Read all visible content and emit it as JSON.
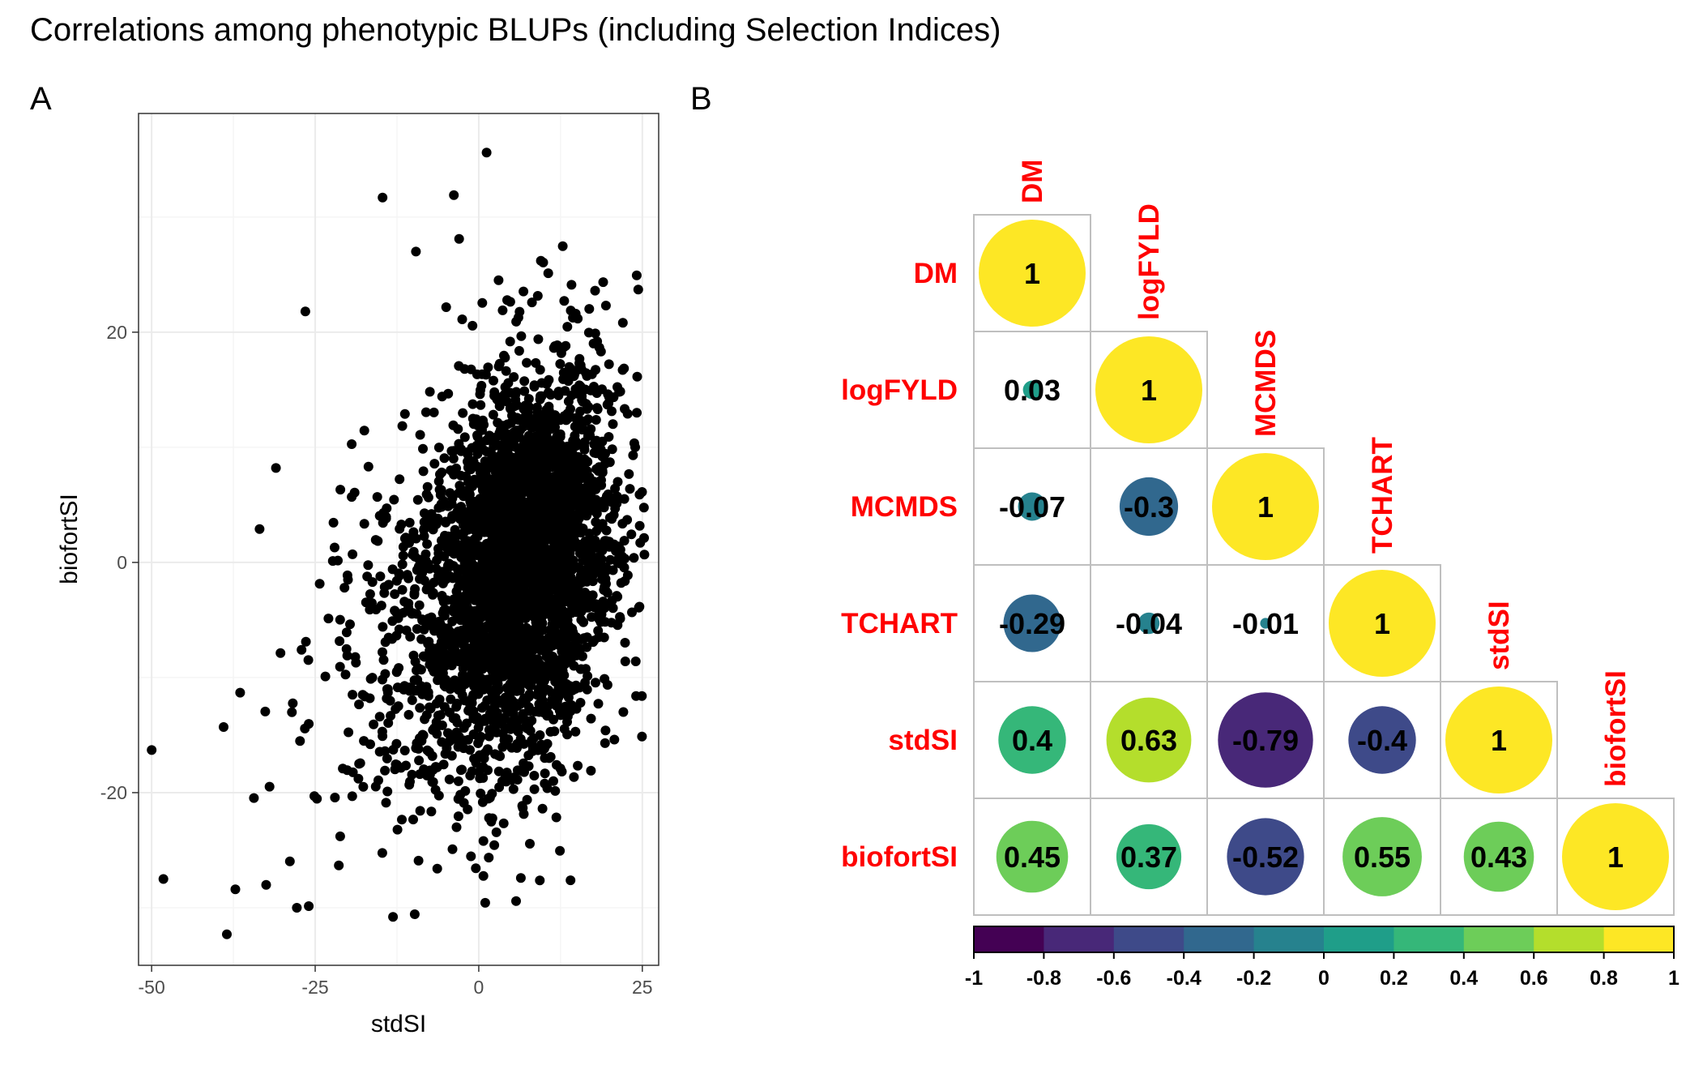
{
  "title": "Correlations among phenotypic BLUPs (including Selection Indices)",
  "panels": {
    "a": "A",
    "b": "B"
  },
  "colors": {
    "label": "#FF0000",
    "point": "#000000",
    "grid_major": "#EBEBEB",
    "grid_minor": "#F5F5F5",
    "cell_border": "#BFBFBF",
    "palette": [
      "#440154",
      "#482878",
      "#3E4A89",
      "#31688E",
      "#26828E",
      "#1F9E89",
      "#35B779",
      "#6DCD59",
      "#B4DE2C",
      "#FDE725"
    ]
  },
  "chart_data": [
    {
      "type": "scatter",
      "panel": "A",
      "xlabel": "stdSI",
      "ylabel": "biofortSI",
      "xlim": [
        -52,
        27.5
      ],
      "ylim": [
        -35,
        39
      ],
      "xticks": [
        -50,
        -25,
        0,
        25
      ],
      "yticks": [
        -20,
        0,
        20
      ],
      "minor_x": [
        -37.5,
        -12.5,
        12.5
      ],
      "minor_y": [
        -30,
        -10,
        10,
        30
      ],
      "n_points_approx": 3500,
      "outlier_points": [
        {
          "x": -50.0,
          "y": -16.3
        },
        {
          "x": -48.2,
          "y": -27.5
        },
        {
          "x": -38.5,
          "y": -32.3
        },
        {
          "x": 1.2,
          "y": 35.6
        },
        {
          "x": -14.7,
          "y": 31.7
        },
        {
          "x": -3.8,
          "y": 31.9
        },
        {
          "x": -26.5,
          "y": 21.8
        },
        {
          "x": -9.6,
          "y": 27.0
        },
        {
          "x": -13.1,
          "y": -30.8
        },
        {
          "x": -27.8,
          "y": -30.0
        },
        {
          "x": 24.0,
          "y": -8.6
        },
        {
          "x": 19.3,
          "y": -15.7
        },
        {
          "x": -39.0,
          "y": -14.3
        },
        {
          "x": -37.2,
          "y": -28.4
        },
        {
          "x": -3.4,
          "y": -23.0
        },
        {
          "x": 9.5,
          "y": 26.2
        },
        {
          "x": -3.0,
          "y": 28.1
        },
        {
          "x": 22.1,
          "y": -13.0
        },
        {
          "x": -31.0,
          "y": 8.2
        },
        {
          "x": -33.5,
          "y": 2.9
        }
      ]
    },
    {
      "type": "heatmap",
      "panel": "B",
      "variables": [
        "DM",
        "logFYLD",
        "MCMDS",
        "TCHART",
        "stdSI",
        "biofortSI"
      ],
      "matrix": [
        [
          1,
          0.03,
          -0.07,
          -0.29,
          0.4,
          0.45
        ],
        [
          0.03,
          1,
          -0.3,
          -0.04,
          0.63,
          0.37
        ],
        [
          -0.07,
          -0.3,
          1,
          -0.01,
          -0.79,
          -0.52
        ],
        [
          -0.29,
          -0.04,
          -0.01,
          1,
          -0.4,
          0.55
        ],
        [
          0.4,
          0.63,
          -0.79,
          -0.4,
          1,
          0.43
        ],
        [
          0.45,
          0.37,
          -0.52,
          0.55,
          0.43,
          1
        ]
      ],
      "value_labels": [
        [
          "1"
        ],
        [
          "0.03",
          "1"
        ],
        [
          "-0.07",
          "-0.3",
          "1"
        ],
        [
          "-0.29",
          "-0.04",
          "-0.01",
          "1"
        ],
        [
          "0.4",
          "0.63",
          "-0.79",
          "-0.4",
          "1"
        ],
        [
          "0.45",
          "0.37",
          "-0.52",
          "0.55",
          "0.43",
          "1"
        ]
      ],
      "method": "circle",
      "layout": "lower",
      "colorbar": {
        "range": [
          -1,
          1
        ],
        "ticks": [
          "-1",
          "-0.8",
          "-0.6",
          "-0.4",
          "-0.2",
          "0",
          "0.2",
          "0.4",
          "0.6",
          "0.8",
          "1"
        ],
        "position": "bottom"
      }
    }
  ]
}
